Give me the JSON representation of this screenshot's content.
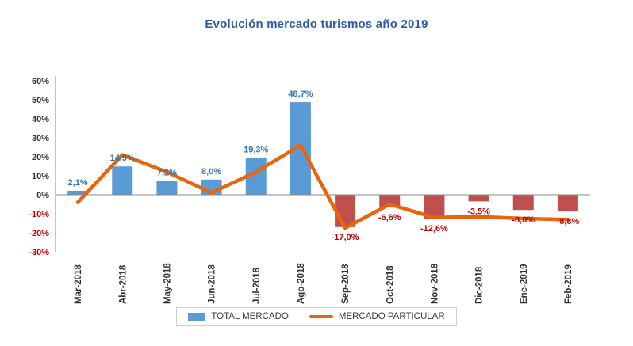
{
  "title": "Evolución mercado turismos año 2019",
  "colors": {
    "title": "#2E5CA6",
    "bar_positive": "#5B9BD5",
    "bar_negative": "#C0504D",
    "line": "#E8650D",
    "label_positive": "#2E75B6",
    "label_negative": "#C00000",
    "axis_tick_positive": "#333333",
    "axis_tick_negative": "#CC0000",
    "axis_line": "#8a8a8a",
    "category_label": "#333333"
  },
  "chart_data": {
    "type": "bar",
    "subtype": "bar-and-line-combo",
    "title": "Evolución mercado turismos año 2019",
    "categories": [
      "Mar-2018",
      "Abr-2018",
      "May-2018",
      "Jun-2018",
      "Jul-2018",
      "Ago-2018",
      "Sep-2018",
      "Oct-2018",
      "Nov-2018",
      "Dic-2018",
      "Ene-2019",
      "Feb-2019"
    ],
    "series": [
      {
        "name": "TOTAL MERCADO",
        "type": "bar",
        "values": [
          2.1,
          14.9,
          7.2,
          8.0,
          19.3,
          48.7,
          -17.0,
          -6.6,
          -12.6,
          -3.5,
          -8.0,
          -8.8
        ],
        "data_labels": [
          "2,1%",
          "14,9%",
          "7,2%",
          "8,0%",
          "19,3%",
          "48,7%",
          "-17,0%",
          "-6,6%",
          "-12,6%",
          "-3,5%",
          "-8,0%",
          "-8,8%"
        ]
      },
      {
        "name": "MERCADO PARTICULAR",
        "type": "line",
        "values": [
          -4,
          21,
          12,
          1,
          12,
          26,
          -17.5,
          -5,
          -12,
          -11.5,
          -12.5,
          -13
        ]
      }
    ],
    "ylim": [
      -30,
      60
    ],
    "ytick_values": [
      60,
      50,
      40,
      30,
      20,
      10,
      0,
      -10,
      -20,
      -30
    ],
    "ytick_labels": [
      "60%",
      "50%",
      "40%",
      "30%",
      "20%",
      "10%",
      "0%",
      "-10%",
      "-20%",
      "-30%"
    ],
    "grid": false,
    "legend_position": "bottom",
    "xlabel": "",
    "ylabel": ""
  },
  "legend": {
    "items": [
      {
        "label": "TOTAL MERCADO",
        "swatch": "bar"
      },
      {
        "label": "MERCADO PARTICULAR",
        "swatch": "line"
      }
    ]
  }
}
